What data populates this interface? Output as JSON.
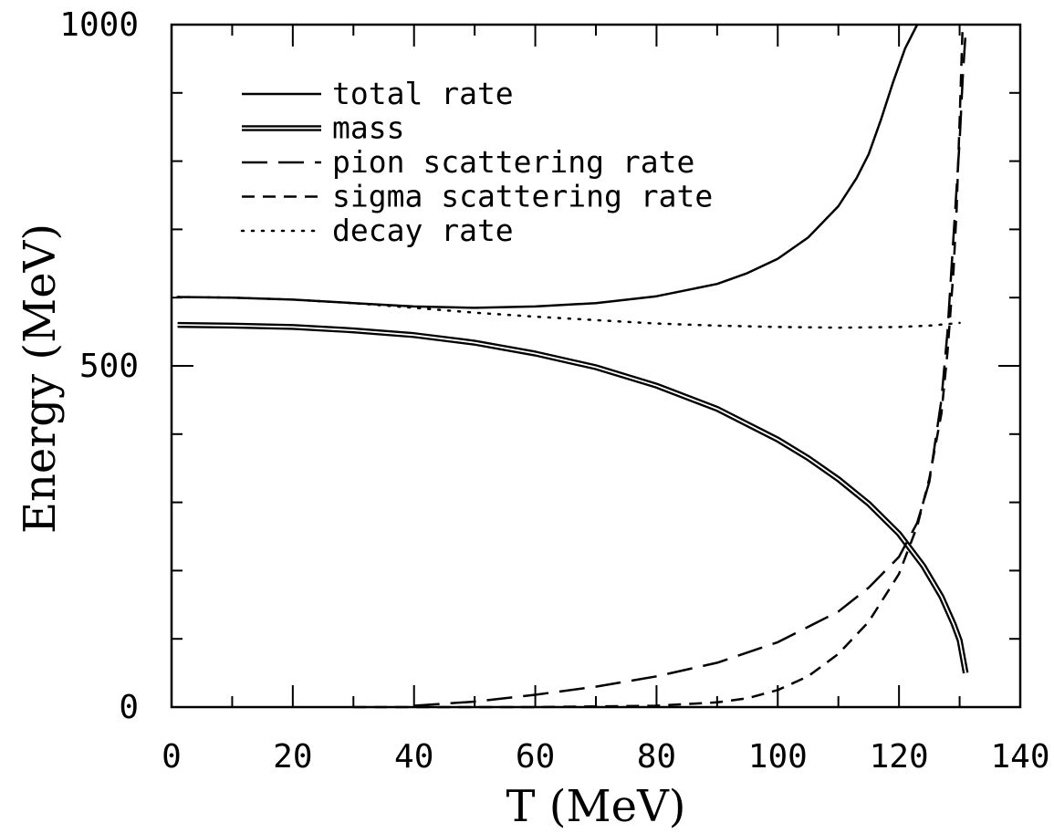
{
  "chart_data": {
    "type": "line",
    "title": "",
    "xlabel": "T (MeV)",
    "ylabel": "Energy (MeV)",
    "xlim": [
      0,
      140
    ],
    "ylim": [
      0,
      1000
    ],
    "x_ticks": [
      0,
      20,
      40,
      60,
      80,
      100,
      120,
      140
    ],
    "x_tick_labels": [
      "0",
      "20",
      "40",
      "60",
      "80",
      "100",
      "120",
      "140"
    ],
    "y_minor_ticks": [
      0,
      100,
      200,
      300,
      400,
      500,
      600,
      700,
      800,
      900,
      1000
    ],
    "y_tick_labels": [
      {
        "value": 0,
        "label": "0"
      },
      {
        "value": 500,
        "label": "500"
      },
      {
        "value": 1000,
        "label": "1000"
      }
    ],
    "grid": false,
    "legend_position": "top-left",
    "series": [
      {
        "name": "total rate",
        "style": "solid",
        "x": [
          1,
          10,
          20,
          30,
          40,
          50,
          60,
          70,
          80,
          90,
          95,
          100,
          105,
          110,
          113,
          115,
          117,
          119,
          121,
          123
        ],
        "y": [
          601,
          600,
          597,
          592,
          587,
          585,
          587,
          592,
          602,
          620,
          636,
          657,
          688,
          734,
          775,
          810,
          860,
          915,
          965,
          1000
        ]
      },
      {
        "name": "mass",
        "style": "double",
        "x": [
          1,
          10,
          20,
          30,
          40,
          50,
          60,
          70,
          80,
          90,
          100,
          105,
          110,
          115,
          120,
          124,
          127,
          129,
          130,
          131
        ],
        "y": [
          560,
          559,
          557,
          552,
          545,
          534,
          518,
          498,
          471,
          437,
          392,
          365,
          334,
          298,
          254,
          207,
          162,
          122,
          98,
          50
        ]
      },
      {
        "name": "pion scattering rate",
        "style": "long-dash",
        "x": [
          40,
          50,
          60,
          70,
          80,
          90,
          100,
          110,
          115,
          120,
          123,
          125,
          127,
          128,
          129,
          130,
          130.5,
          131
        ],
        "y": [
          2,
          8,
          18,
          30,
          45,
          65,
          95,
          140,
          175,
          220,
          270,
          330,
          450,
          550,
          690,
          830,
          920,
          990
        ]
      },
      {
        "name": "sigma scattering rate",
        "style": "short-dash",
        "x": [
          30,
          60,
          80,
          90,
          95,
          100,
          105,
          110,
          115,
          120,
          123,
          125,
          127,
          128,
          129,
          129.5,
          130,
          130.5
        ],
        "y": [
          0,
          0,
          2,
          7,
          13,
          25,
          45,
          78,
          125,
          195,
          265,
          335,
          430,
          520,
          640,
          730,
          860,
          1000
        ]
      },
      {
        "name": "decay rate",
        "style": "dotted",
        "x": [
          1,
          10,
          20,
          30,
          40,
          50,
          60,
          70,
          80,
          90,
          100,
          110,
          120,
          125,
          129,
          130
        ],
        "y": [
          601,
          600,
          597,
          592,
          585,
          578,
          572,
          567,
          562,
          559,
          557,
          556,
          557,
          559,
          562,
          563
        ]
      }
    ]
  }
}
